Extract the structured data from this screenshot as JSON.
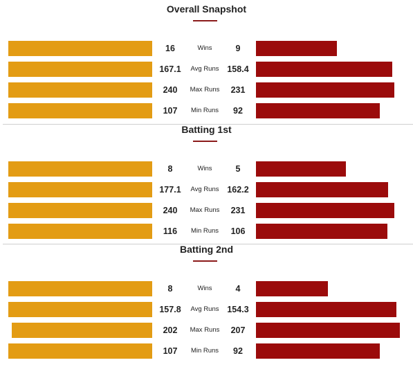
{
  "colors": {
    "left_team": "#E39C14",
    "right_team": "#9B0B0B",
    "accent_underline": "#8B1A1A"
  },
  "stat_labels": {
    "wins": "Wins",
    "avg_runs": "Avg Runs",
    "max_runs": "Max Runs",
    "min_runs": "Min Runs"
  },
  "chart_data": [
    {
      "type": "bar",
      "title": "Overall Snapshot",
      "categories": [
        "Wins",
        "Avg Runs",
        "Max Runs",
        "Min Runs"
      ],
      "series": [
        {
          "values": [
            16,
            167.1,
            240,
            107
          ],
          "labels": [
            "16",
            "167.1",
            "240",
            "107"
          ]
        },
        {
          "values": [
            9,
            158.4,
            231,
            92
          ],
          "labels": [
            "9",
            "158.4",
            "231",
            "92"
          ]
        }
      ]
    },
    {
      "type": "bar",
      "title": "Batting 1st",
      "categories": [
        "Wins",
        "Avg Runs",
        "Max Runs",
        "Min Runs"
      ],
      "series": [
        {
          "values": [
            8,
            177.1,
            240,
            116
          ],
          "labels": [
            "8",
            "177.1",
            "240",
            "116"
          ]
        },
        {
          "values": [
            5,
            162.2,
            231,
            106
          ],
          "labels": [
            "5",
            "162.2",
            "231",
            "106"
          ]
        }
      ]
    },
    {
      "type": "bar",
      "title": "Batting 2nd",
      "categories": [
        "Wins",
        "Avg Runs",
        "Max Runs",
        "Min Runs"
      ],
      "series": [
        {
          "values": [
            8,
            157.8,
            202,
            107
          ],
          "labels": [
            "8",
            "157.8",
            "202",
            "107"
          ]
        },
        {
          "values": [
            4,
            154.3,
            207,
            92
          ],
          "labels": [
            "4",
            "154.3",
            "207",
            "92"
          ]
        }
      ]
    }
  ]
}
